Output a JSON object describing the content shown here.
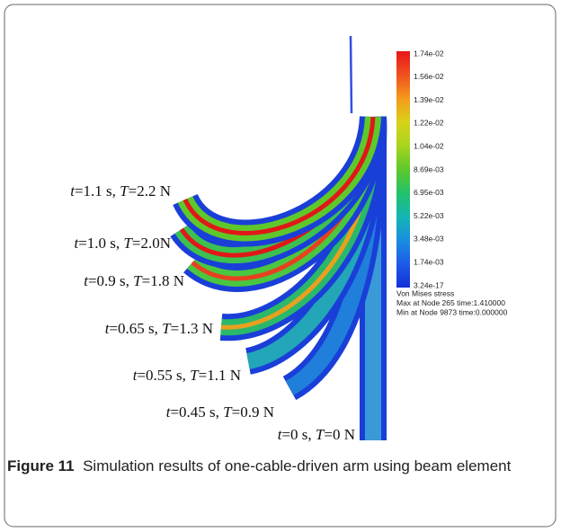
{
  "figure": {
    "labels": [
      [
        "t",
        "=1.1 s, ",
        "T",
        "=2.2 N"
      ],
      [
        "t",
        "=1.0 s, ",
        "T",
        "=2.0N"
      ],
      [
        "t",
        "=0.9 s, ",
        "T",
        "=1.8 N"
      ],
      [
        "t",
        "=0.65 s, ",
        "T",
        "=1.3 N"
      ],
      [
        "t",
        "=0.55 s, ",
        "T",
        "=1.1 N"
      ],
      [
        "t",
        "=0.45 s, ",
        "T",
        "=0.9 N"
      ],
      [
        "t",
        "=0 s, ",
        "T",
        "=0 N"
      ]
    ],
    "colorbar": [
      "1.74e-02",
      "1.56e-02",
      "1.39e-02",
      "1.22e-02",
      "1.04e-02",
      "8.69e-03",
      "6.95e-03",
      "5.22e-03",
      "3.48e-03",
      "1.74e-03",
      "3.24e-17"
    ],
    "legend": [
      "Von Mises stress",
      "Max at Node 265 time:1.410000",
      "Min at Node 9873 time:0.000000"
    ],
    "caption": {
      "label": "Figure 11",
      "text": "Simulation results of one-cable-driven arm using beam element"
    }
  }
}
